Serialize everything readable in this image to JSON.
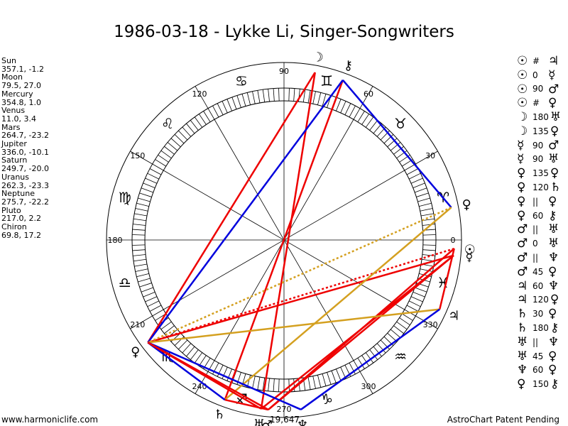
{
  "title": "1986-03-18 - Lykke Li, Singer-Songwriters",
  "planets": [
    {
      "name": "Sun",
      "position": "357.1, -1.2"
    },
    {
      "name": "Moon",
      "position": "79.5, 27.0"
    },
    {
      "name": "Mercury",
      "position": "354.8, 1.0"
    },
    {
      "name": "Venus",
      "position": "11.0, 3.4"
    },
    {
      "name": "Mars",
      "position": "264.7, -23.2"
    },
    {
      "name": "Jupiter",
      "position": "336.0, -10.1"
    },
    {
      "name": "Saturn",
      "position": "249.7, -20.0"
    },
    {
      "name": "Uranus",
      "position": "262.3, -23.3"
    },
    {
      "name": "Neptune",
      "position": "275.7, -22.2"
    },
    {
      "name": "Pluto",
      "position": "217.0, 2.2"
    },
    {
      "name": "Chiron",
      "position": "69.8, 17.2"
    }
  ],
  "aspects": [
    {
      "p1": "☉",
      "aspect": "#",
      "p2": "♃"
    },
    {
      "p1": "☉",
      "aspect": "0",
      "p2": "☿"
    },
    {
      "p1": "☉",
      "aspect": "90",
      "p2": "♂"
    },
    {
      "p1": "☉",
      "aspect": "#",
      "p2": "♀"
    },
    {
      "p1": "☽",
      "aspect": "180",
      "p2": "♅"
    },
    {
      "p1": "☽",
      "aspect": "135",
      "p2": "♀"
    },
    {
      "p1": "☿",
      "aspect": "90",
      "p2": "♂"
    },
    {
      "p1": "☿",
      "aspect": "90",
      "p2": "♅"
    },
    {
      "p1": "♀",
      "aspect": "135",
      "p2": "♀"
    },
    {
      "p1": "♀",
      "aspect": "120",
      "p2": "♄"
    },
    {
      "p1": "♀",
      "aspect": "||",
      "p2": "♀"
    },
    {
      "p1": "♀",
      "aspect": "60",
      "p2": "⚷"
    },
    {
      "p1": "♂",
      "aspect": "||",
      "p2": "♅"
    },
    {
      "p1": "♂",
      "aspect": "0",
      "p2": "♅"
    },
    {
      "p1": "♂",
      "aspect": "||",
      "p2": "♆"
    },
    {
      "p1": "♂",
      "aspect": "45",
      "p2": "♀"
    },
    {
      "p1": "♃",
      "aspect": "60",
      "p2": "♆"
    },
    {
      "p1": "♃",
      "aspect": "120",
      "p2": "♀"
    },
    {
      "p1": "♄",
      "aspect": "30",
      "p2": "♀"
    },
    {
      "p1": "♄",
      "aspect": "180",
      "p2": "⚷"
    },
    {
      "p1": "♅",
      "aspect": "||",
      "p2": "♆"
    },
    {
      "p1": "♅",
      "aspect": "45",
      "p2": "♀"
    },
    {
      "p1": "♆",
      "aspect": "60",
      "p2": "♀"
    },
    {
      "p1": "♀",
      "aspect": "150",
      "p2": "⚷"
    }
  ],
  "wheel": {
    "degree_labels": [
      "0",
      "30",
      "60",
      "90",
      "120",
      "150",
      "180",
      "210",
      "240",
      "270",
      "300",
      "330"
    ],
    "sign_glyphs": [
      "♈",
      "♉",
      "♊",
      "♋",
      "♌",
      "♍",
      "♎",
      "♏",
      "♐",
      "♑",
      "♒",
      "♓"
    ],
    "planet_glyphs": [
      {
        "glyph": "☉",
        "lon": 357.1
      },
      {
        "glyph": "☽",
        "lon": 79.5
      },
      {
        "glyph": "☿",
        "lon": 354.8
      },
      {
        "glyph": "♀",
        "lon": 11.0
      },
      {
        "glyph": "♂",
        "lon": 264.7
      },
      {
        "glyph": "♃",
        "lon": 336.0
      },
      {
        "glyph": "♄",
        "lon": 249.7
      },
      {
        "glyph": "♅",
        "lon": 262.3
      },
      {
        "glyph": "♆",
        "lon": 275.7
      },
      {
        "glyph": "♀",
        "lon": 217.0
      },
      {
        "glyph": "⚷",
        "lon": 69.8
      }
    ],
    "extra_label": "19,647",
    "aspect_lines": [
      {
        "from": 79.5,
        "to": 262.3,
        "color": "#ee0000",
        "style": "solid"
      },
      {
        "from": 79.5,
        "to": 217.0,
        "color": "#ee0000",
        "style": "solid"
      },
      {
        "from": 69.8,
        "to": 249.7,
        "color": "#ee0000",
        "style": "solid"
      },
      {
        "from": 69.8,
        "to": 217.0,
        "color": "#0000dd",
        "style": "solid"
      },
      {
        "from": 69.8,
        "to": 11.0,
        "color": "#0000dd",
        "style": "solid"
      },
      {
        "from": 357.1,
        "to": 264.7,
        "color": "#ee0000",
        "style": "solid"
      },
      {
        "from": 357.1,
        "to": 336.0,
        "color": "#ee0000",
        "style": "solid"
      },
      {
        "from": 357.1,
        "to": 217.0,
        "color": "#ee0000",
        "style": "dotted"
      },
      {
        "from": 354.8,
        "to": 264.7,
        "color": "#ee0000",
        "style": "solid"
      },
      {
        "from": 354.8,
        "to": 262.3,
        "color": "#ee0000",
        "style": "solid"
      },
      {
        "from": 354.8,
        "to": 217.0,
        "color": "#ee0000",
        "style": "solid"
      },
      {
        "from": 11.0,
        "to": 217.0,
        "color": "#d4a020",
        "style": "dotted"
      },
      {
        "from": 11.0,
        "to": 249.7,
        "color": "#d4a020",
        "style": "solid"
      },
      {
        "from": 336.0,
        "to": 217.0,
        "color": "#d4a020",
        "style": "solid"
      },
      {
        "from": 336.0,
        "to": 275.7,
        "color": "#0000dd",
        "style": "solid"
      },
      {
        "from": 249.7,
        "to": 217.0,
        "color": "#0000dd",
        "style": "solid"
      },
      {
        "from": 275.7,
        "to": 217.0,
        "color": "#0000dd",
        "style": "solid"
      },
      {
        "from": 264.7,
        "to": 217.0,
        "color": "#ee0000",
        "style": "solid"
      },
      {
        "from": 262.3,
        "to": 217.0,
        "color": "#ee0000",
        "style": "solid"
      },
      {
        "from": 249.7,
        "to": 264.7,
        "color": "#ee0000",
        "style": "solid"
      }
    ]
  },
  "footer": {
    "left": "www.harmoniclife.com",
    "right": "AstroChart Patent Pending"
  }
}
